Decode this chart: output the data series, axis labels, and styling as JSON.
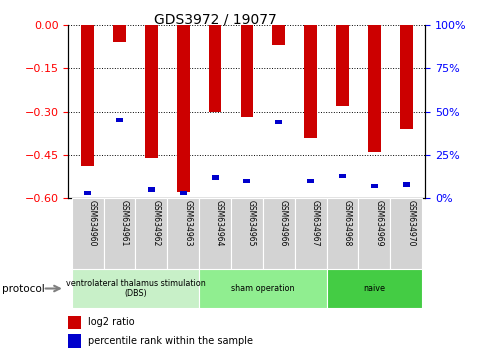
{
  "title": "GDS3972 / 19077",
  "samples": [
    "GSM634960",
    "GSM634961",
    "GSM634962",
    "GSM634963",
    "GSM634964",
    "GSM634965",
    "GSM634966",
    "GSM634967",
    "GSM634968",
    "GSM634969",
    "GSM634970"
  ],
  "log2_ratio": [
    -0.49,
    -0.06,
    -0.46,
    -0.58,
    -0.3,
    -0.32,
    -0.07,
    -0.39,
    -0.28,
    -0.44,
    -0.36
  ],
  "percentile_rank": [
    3,
    45,
    5,
    3,
    12,
    10,
    44,
    10,
    13,
    7,
    8
  ],
  "bar_color": "#cc0000",
  "pct_color": "#0000cc",
  "ylim_left": [
    -0.6,
    0.0
  ],
  "ylim_right": [
    0,
    100
  ],
  "yticks_left": [
    0,
    -0.15,
    -0.3,
    -0.45,
    -0.6
  ],
  "yticks_right": [
    100,
    75,
    50,
    25,
    0
  ],
  "groups": [
    {
      "label": "ventrolateral thalamus stimulation\n(DBS)",
      "start": 0,
      "end": 3
    },
    {
      "label": "sham operation",
      "start": 4,
      "end": 7
    },
    {
      "label": "naive",
      "start": 8,
      "end": 10
    }
  ],
  "group_colors": [
    "#c8f0c8",
    "#90ee90",
    "#44cc44"
  ],
  "protocol_label": "protocol",
  "legend_items": [
    {
      "label": "log2 ratio",
      "color": "#cc0000"
    },
    {
      "label": "percentile rank within the sample",
      "color": "#0000cc"
    }
  ]
}
